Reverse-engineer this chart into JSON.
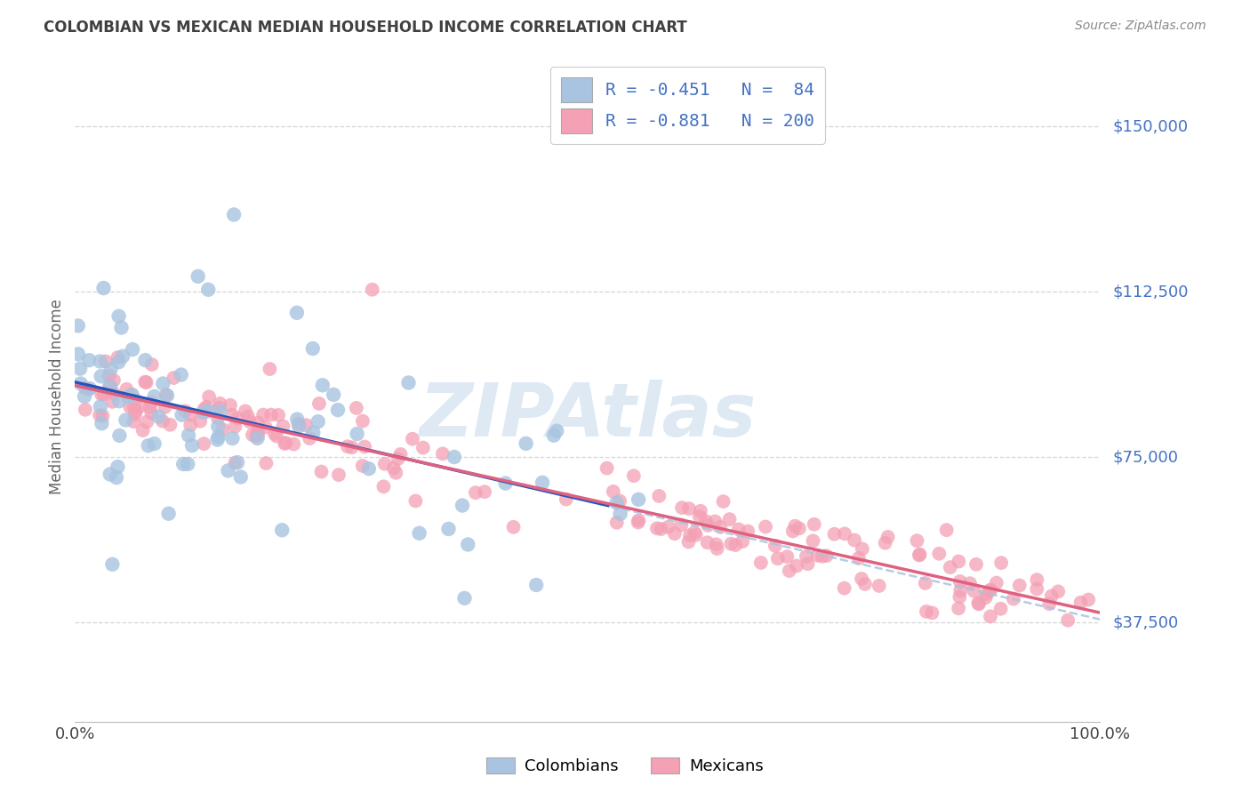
{
  "title": "COLOMBIAN VS MEXICAN MEDIAN HOUSEHOLD INCOME CORRELATION CHART",
  "source": "Source: ZipAtlas.com",
  "ylabel": "Median Household Income",
  "ytick_labels": [
    "$37,500",
    "$75,000",
    "$112,500",
    "$150,000"
  ],
  "ytick_values": [
    37500,
    75000,
    112500,
    150000
  ],
  "ymin": 15000,
  "ymax": 162500,
  "xmin": 0.0,
  "xmax": 1.0,
  "colombian_R": -0.451,
  "colombian_N": 84,
  "mexican_R": -0.881,
  "mexican_N": 200,
  "colombian_color": "#a8c4e0",
  "mexican_color": "#f4a0b5",
  "colombian_line_color": "#2255bb",
  "mexican_line_color": "#e06080",
  "dashed_line_color": "#a8c4e0",
  "watermark_color": "#c5d8ec",
  "legend_text_color": "#4472c4",
  "title_color": "#404040",
  "right_label_color": "#4472c4",
  "background_color": "#ffffff",
  "grid_color": "#cccccc"
}
